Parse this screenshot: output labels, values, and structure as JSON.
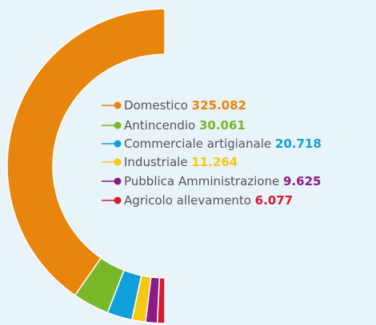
{
  "chart_data": {
    "type": "pie",
    "donut": true,
    "half": "left",
    "categories": [
      "Domestico",
      "Antincendio",
      "Commerciale artigianale",
      "Industriale",
      "Pubblica Amministrazione",
      "Agricolo allevamento"
    ],
    "values": [
      325082,
      30061,
      20718,
      11264,
      9625,
      6077
    ],
    "value_labels": [
      "325.082",
      "30.061",
      "20.718",
      "11.264",
      "9.625",
      "6.077"
    ],
    "colors": [
      "#e8850c",
      "#79b82a",
      "#0fa0dc",
      "#f8c712",
      "#8b1c84",
      "#d51b2c"
    ]
  }
}
